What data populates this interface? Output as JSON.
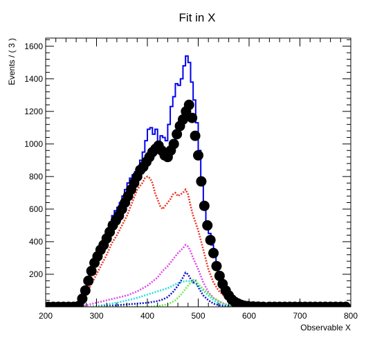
{
  "chart_data": {
    "type": "line",
    "title": "Fit in X",
    "xlabel": "Observable X",
    "ylabel": "Events / ( 3 )",
    "xlim": [
      200,
      800
    ],
    "ylim": [
      0,
      1650
    ],
    "xticks": [
      200,
      300,
      400,
      500,
      600,
      700,
      800
    ],
    "yticks": [
      200,
      400,
      600,
      800,
      1000,
      1200,
      1400,
      1600
    ],
    "grid": false,
    "legend": "none",
    "series": [
      {
        "style": "step",
        "color": "#0000ee",
        "dash": "solid",
        "points": [
          [
            200,
            0
          ],
          [
            265,
            0
          ],
          [
            270,
            20
          ],
          [
            275,
            80
          ],
          [
            280,
            140
          ],
          [
            285,
            200
          ],
          [
            290,
            250
          ],
          [
            295,
            280
          ],
          [
            300,
            320
          ],
          [
            305,
            350
          ],
          [
            310,
            380
          ],
          [
            315,
            420
          ],
          [
            320,
            470
          ],
          [
            325,
            520
          ],
          [
            330,
            560
          ],
          [
            335,
            590
          ],
          [
            340,
            610
          ],
          [
            345,
            640
          ],
          [
            350,
            680
          ],
          [
            355,
            720
          ],
          [
            360,
            760
          ],
          [
            365,
            790
          ],
          [
            370,
            810
          ],
          [
            375,
            830
          ],
          [
            380,
            860
          ],
          [
            385,
            900
          ],
          [
            390,
            950
          ],
          [
            395,
            1020
          ],
          [
            400,
            1090
          ],
          [
            405,
            1100
          ],
          [
            410,
            1060
          ],
          [
            415,
            1090
          ],
          [
            420,
            1010
          ],
          [
            425,
            1050
          ],
          [
            430,
            1040
          ],
          [
            435,
            1020
          ],
          [
            440,
            1120
          ],
          [
            445,
            1230
          ],
          [
            450,
            1290
          ],
          [
            455,
            1370
          ],
          [
            460,
            1360
          ],
          [
            465,
            1400
          ],
          [
            470,
            1480
          ],
          [
            475,
            1540
          ],
          [
            480,
            1500
          ],
          [
            485,
            1380
          ],
          [
            490,
            1270
          ],
          [
            495,
            1130
          ],
          [
            500,
            960
          ],
          [
            505,
            780
          ],
          [
            510,
            620
          ],
          [
            515,
            520
          ],
          [
            520,
            450
          ],
          [
            525,
            380
          ],
          [
            530,
            310
          ],
          [
            535,
            240
          ],
          [
            540,
            190
          ],
          [
            545,
            150
          ],
          [
            550,
            110
          ],
          [
            555,
            80
          ],
          [
            560,
            60
          ],
          [
            565,
            40
          ],
          [
            570,
            25
          ],
          [
            575,
            15
          ],
          [
            580,
            8
          ],
          [
            585,
            4
          ],
          [
            590,
            2
          ],
          [
            600,
            0
          ],
          [
            800,
            0
          ]
        ]
      },
      {
        "style": "dotted",
        "color": "#ee3322",
        "dash": "dotted",
        "points": [
          [
            200,
            0
          ],
          [
            265,
            0
          ],
          [
            270,
            20
          ],
          [
            280,
            80
          ],
          [
            290,
            140
          ],
          [
            300,
            200
          ],
          [
            310,
            260
          ],
          [
            320,
            320
          ],
          [
            330,
            390
          ],
          [
            340,
            440
          ],
          [
            350,
            500
          ],
          [
            360,
            560
          ],
          [
            370,
            640
          ],
          [
            380,
            720
          ],
          [
            390,
            760
          ],
          [
            395,
            790
          ],
          [
            400,
            800
          ],
          [
            405,
            790
          ],
          [
            410,
            760
          ],
          [
            415,
            700
          ],
          [
            420,
            660
          ],
          [
            425,
            620
          ],
          [
            430,
            600
          ],
          [
            435,
            620
          ],
          [
            440,
            640
          ],
          [
            445,
            660
          ],
          [
            450,
            690
          ],
          [
            455,
            700
          ],
          [
            460,
            680
          ],
          [
            465,
            690
          ],
          [
            470,
            700
          ],
          [
            475,
            720
          ],
          [
            480,
            690
          ],
          [
            485,
            620
          ],
          [
            490,
            560
          ],
          [
            500,
            470
          ],
          [
            510,
            350
          ],
          [
            520,
            230
          ],
          [
            530,
            150
          ],
          [
            540,
            100
          ],
          [
            550,
            70
          ],
          [
            560,
            50
          ],
          [
            570,
            30
          ],
          [
            580,
            15
          ],
          [
            590,
            6
          ],
          [
            600,
            2
          ],
          [
            610,
            0
          ],
          [
            800,
            0
          ]
        ]
      },
      {
        "style": "dotted",
        "color": "#dd44ee",
        "dash": "dotted",
        "points": [
          [
            200,
            0
          ],
          [
            270,
            0
          ],
          [
            280,
            10
          ],
          [
            300,
            25
          ],
          [
            320,
            40
          ],
          [
            340,
            55
          ],
          [
            360,
            70
          ],
          [
            380,
            95
          ],
          [
            400,
            130
          ],
          [
            420,
            180
          ],
          [
            430,
            220
          ],
          [
            440,
            250
          ],
          [
            450,
            290
          ],
          [
            460,
            330
          ],
          [
            470,
            360
          ],
          [
            475,
            380
          ],
          [
            480,
            370
          ],
          [
            485,
            340
          ],
          [
            490,
            300
          ],
          [
            500,
            230
          ],
          [
            510,
            150
          ],
          [
            520,
            90
          ],
          [
            530,
            55
          ],
          [
            540,
            35
          ],
          [
            550,
            20
          ],
          [
            560,
            10
          ],
          [
            570,
            6
          ],
          [
            580,
            3
          ],
          [
            600,
            0
          ],
          [
            800,
            0
          ]
        ]
      },
      {
        "style": "dotted",
        "color": "#22dddd",
        "dash": "dotted",
        "points": [
          [
            200,
            0
          ],
          [
            280,
            0
          ],
          [
            300,
            5
          ],
          [
            320,
            15
          ],
          [
            340,
            25
          ],
          [
            360,
            40
          ],
          [
            380,
            55
          ],
          [
            400,
            75
          ],
          [
            420,
            95
          ],
          [
            440,
            115
          ],
          [
            450,
            130
          ],
          [
            460,
            145
          ],
          [
            470,
            155
          ],
          [
            480,
            160
          ],
          [
            490,
            150
          ],
          [
            500,
            130
          ],
          [
            510,
            100
          ],
          [
            520,
            70
          ],
          [
            530,
            40
          ],
          [
            540,
            20
          ],
          [
            550,
            10
          ],
          [
            560,
            5
          ],
          [
            570,
            2
          ],
          [
            580,
            0
          ],
          [
            800,
            0
          ]
        ]
      },
      {
        "style": "dotted",
        "color": "#1111cc",
        "dash": "dotted",
        "points": [
          [
            200,
            0
          ],
          [
            300,
            0
          ],
          [
            320,
            5
          ],
          [
            340,
            10
          ],
          [
            360,
            15
          ],
          [
            380,
            20
          ],
          [
            400,
            25
          ],
          [
            410,
            30
          ],
          [
            420,
            35
          ],
          [
            430,
            45
          ],
          [
            440,
            60
          ],
          [
            450,
            90
          ],
          [
            460,
            130
          ],
          [
            470,
            180
          ],
          [
            475,
            210
          ],
          [
            480,
            200
          ],
          [
            485,
            170
          ],
          [
            490,
            150
          ],
          [
            495,
            160
          ],
          [
            500,
            120
          ],
          [
            510,
            70
          ],
          [
            520,
            40
          ],
          [
            530,
            20
          ],
          [
            540,
            10
          ],
          [
            550,
            5
          ],
          [
            560,
            2
          ],
          [
            570,
            0
          ],
          [
            800,
            0
          ]
        ]
      },
      {
        "style": "dotted",
        "color": "#66ee44",
        "dash": "dotted",
        "points": [
          [
            200,
            0
          ],
          [
            400,
            0
          ],
          [
            420,
            5
          ],
          [
            440,
            15
          ],
          [
            455,
            40
          ],
          [
            465,
            70
          ],
          [
            475,
            110
          ],
          [
            485,
            150
          ],
          [
            490,
            165
          ],
          [
            495,
            160
          ],
          [
            500,
            140
          ],
          [
            510,
            110
          ],
          [
            520,
            80
          ],
          [
            530,
            55
          ],
          [
            540,
            35
          ],
          [
            550,
            20
          ],
          [
            560,
            10
          ],
          [
            570,
            4
          ],
          [
            580,
            0
          ],
          [
            800,
            0
          ]
        ]
      },
      {
        "style": "markers",
        "color": "#000000",
        "points": [
          [
            205,
            0
          ],
          [
            215,
            0
          ],
          [
            225,
            0
          ],
          [
            235,
            0
          ],
          [
            245,
            0
          ],
          [
            255,
            0
          ],
          [
            265,
            5
          ],
          [
            272,
            50
          ],
          [
            278,
            100
          ],
          [
            284,
            160
          ],
          [
            290,
            220
          ],
          [
            296,
            270
          ],
          [
            302,
            310
          ],
          [
            308,
            350
          ],
          [
            314,
            380
          ],
          [
            320,
            420
          ],
          [
            326,
            460
          ],
          [
            332,
            500
          ],
          [
            338,
            530
          ],
          [
            344,
            560
          ],
          [
            350,
            600
          ],
          [
            356,
            640
          ],
          [
            362,
            680
          ],
          [
            368,
            720
          ],
          [
            374,
            760
          ],
          [
            380,
            800
          ],
          [
            386,
            840
          ],
          [
            392,
            860
          ],
          [
            398,
            890
          ],
          [
            404,
            920
          ],
          [
            410,
            950
          ],
          [
            416,
            970
          ],
          [
            422,
            990
          ],
          [
            428,
            960
          ],
          [
            434,
            930
          ],
          [
            440,
            920
          ],
          [
            446,
            960
          ],
          [
            452,
            1000
          ],
          [
            458,
            1060
          ],
          [
            464,
            1110
          ],
          [
            470,
            1150
          ],
          [
            476,
            1200
          ],
          [
            482,
            1240
          ],
          [
            488,
            1160
          ],
          [
            494,
            1050
          ],
          [
            500,
            930
          ],
          [
            506,
            770
          ],
          [
            512,
            620
          ],
          [
            518,
            500
          ],
          [
            524,
            410
          ],
          [
            530,
            330
          ],
          [
            536,
            250
          ],
          [
            542,
            190
          ],
          [
            548,
            140
          ],
          [
            554,
            100
          ],
          [
            560,
            70
          ],
          [
            566,
            45
          ],
          [
            572,
            30
          ],
          [
            578,
            20
          ],
          [
            584,
            12
          ],
          [
            590,
            7
          ],
          [
            598,
            4
          ],
          [
            608,
            2
          ],
          [
            618,
            1
          ],
          [
            628,
            0
          ],
          [
            640,
            0
          ],
          [
            650,
            0
          ],
          [
            660,
            0
          ],
          [
            670,
            0
          ],
          [
            680,
            0
          ],
          [
            690,
            0
          ],
          [
            700,
            0
          ],
          [
            710,
            0
          ],
          [
            720,
            0
          ],
          [
            730,
            0
          ],
          [
            740,
            0
          ],
          [
            750,
            0
          ],
          [
            760,
            0
          ],
          [
            770,
            0
          ],
          [
            780,
            0
          ],
          [
            790,
            0
          ]
        ]
      }
    ]
  }
}
